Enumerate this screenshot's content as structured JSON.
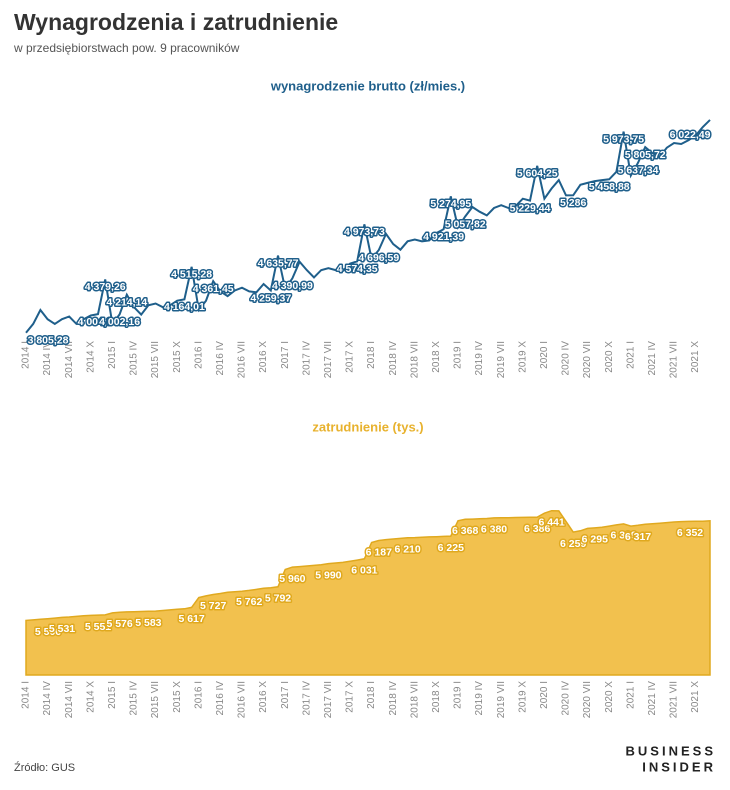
{
  "title": "Wynagrodzenia i zatrudnienie",
  "subtitle": "w przedsiębiorstwach pow. 9 pracowników",
  "source": "Źródło: GUS",
  "logo": [
    "BUSINESS",
    "INSIDER"
  ],
  "chart_data": [
    {
      "type": "line",
      "title": "wynagrodzenie brutto (zł/mies.)",
      "color": "#1f5f8b",
      "categories": [
        "2014 I",
        null,
        null,
        "2014 IV",
        null,
        null,
        "2014 VII",
        null,
        null,
        "2014 X",
        null,
        null,
        "2015 I",
        null,
        null,
        "2015 IV",
        null,
        null,
        "2015 VII",
        null,
        null,
        "2015 X",
        null,
        null,
        "2016 I",
        null,
        null,
        "2016 IV",
        null,
        null,
        "2016 VII",
        null,
        null,
        "2016 X",
        null,
        null,
        "2017 I",
        null,
        null,
        "2017 IV",
        null,
        null,
        "2017 VII",
        null,
        null,
        "2017 X",
        null,
        null,
        "2018 I",
        null,
        null,
        "2018 IV",
        null,
        null,
        "2018 VII",
        null,
        null,
        "2018 X",
        null,
        null,
        "2019 I",
        null,
        null,
        "2019 IV",
        null,
        null,
        "2019 VII",
        null,
        null,
        "2019 X",
        null,
        null,
        "2020 I",
        null,
        null,
        "2020 IV",
        null,
        null,
        "2020 VII",
        null,
        null,
        "2020 X",
        null,
        null,
        "2021 I",
        null,
        null,
        "2021 IV",
        null,
        null,
        "2021 VII",
        null,
        null,
        "2021 X",
        null,
        null
      ],
      "values": [
        3805.28,
        3900,
        4050,
        3950,
        3900,
        3950,
        3980,
        3900,
        3950,
        3990,
        4004.84,
        4379.26,
        3899.05,
        4002.16,
        4214.14,
        4080,
        4000,
        4100,
        4120,
        4080,
        4100,
        4150,
        4164.01,
        4515.28,
        4050,
        4150,
        4361.45,
        4250,
        4200,
        4260,
        4290,
        4250,
        4240,
        4330,
        4259.37,
        4635.77,
        4277,
        4390.99,
        4570,
        4480,
        4400,
        4480,
        4500,
        4480,
        4470,
        4550,
        4574.35,
        4973.73,
        4600,
        4696.59,
        4870,
        4760,
        4700,
        4790,
        4810,
        4790,
        4800,
        4880,
        4921.39,
        5274.95,
        4940,
        5057.82,
        5160,
        5110,
        5070,
        5150,
        5180,
        5150,
        5170,
        5250,
        5229.44,
        5604.25,
        5250,
        5360,
        5450,
        5285,
        5286,
        5400,
        5420,
        5440,
        5450,
        5458.88,
        5540,
        5973.75,
        5500,
        5637.34,
        5805.72,
        5740,
        5700,
        5800,
        5850,
        5840,
        5880,
        5930,
        6022.49,
        6100
      ],
      "value_labels": [
        "3 805,28",
        null,
        null,
        null,
        null,
        null,
        null,
        null,
        null,
        null,
        "4 004,84",
        "4 379,26",
        null,
        "4 002,16",
        "4 214,14",
        null,
        null,
        null,
        null,
        null,
        null,
        null,
        "4 164,01",
        "4 515,28",
        null,
        null,
        "4 361,45",
        null,
        null,
        null,
        null,
        null,
        null,
        null,
        "4 259,37",
        "4 635,77",
        null,
        "4 390,99",
        null,
        null,
        null,
        null,
        null,
        null,
        null,
        null,
        "4 574,35",
        "4 973,73",
        null,
        "4 696,59",
        null,
        null,
        null,
        null,
        null,
        null,
        null,
        null,
        "4 921,39",
        "5 274,95",
        null,
        "5 057,82",
        null,
        null,
        null,
        null,
        null,
        null,
        null,
        null,
        "5 229,44",
        "5 604,25",
        null,
        null,
        null,
        null,
        "5 286",
        null,
        null,
        null,
        null,
        "5 458,88",
        null,
        "5 973,75",
        null,
        "5 637,34",
        "5 805,72",
        null,
        null,
        null,
        null,
        null,
        null,
        null,
        "6 022,49",
        null
      ],
      "ylim": [
        3780,
        6120
      ]
    },
    {
      "type": "area",
      "title": "zatrudnienie (tys.)",
      "color": "#f2c14e",
      "line_color": "#e0a91f",
      "categories": [
        "2014 I",
        null,
        null,
        "2014 IV",
        null,
        null,
        "2014 VII",
        null,
        null,
        "2014 X",
        null,
        null,
        "2015 I",
        null,
        null,
        "2015 IV",
        null,
        null,
        "2015 VII",
        null,
        null,
        "2015 X",
        null,
        null,
        "2016 I",
        null,
        null,
        "2016 IV",
        null,
        null,
        "2016 VII",
        null,
        null,
        "2016 X",
        null,
        null,
        "2017 I",
        null,
        null,
        "2017 IV",
        null,
        null,
        "2017 VII",
        null,
        null,
        "2017 X",
        null,
        null,
        "2018 I",
        null,
        null,
        "2018 IV",
        null,
        null,
        "2018 VII",
        null,
        null,
        "2018 X",
        null,
        null,
        "2019 I",
        null,
        null,
        "2019 IV",
        null,
        null,
        "2019 VII",
        null,
        null,
        "2019 X",
        null,
        null,
        "2020 I",
        null,
        null,
        "2020 IV",
        null,
        null,
        "2020 VII",
        null,
        null,
        "2020 X",
        null,
        null,
        "2021 I",
        null,
        null,
        "2021 IV",
        null,
        null,
        "2021 VII",
        null,
        null,
        "2021 X",
        null,
        null
      ],
      "values": [
        5506,
        5510,
        5515,
        5520,
        5525,
        5531,
        5535,
        5540,
        5545,
        5548,
        5551,
        5553,
        5570,
        5576,
        5578,
        5580,
        5582,
        5583,
        5585,
        5590,
        5595,
        5600,
        5605,
        5617,
        5700,
        5715,
        5727,
        5735,
        5745,
        5750,
        5755,
        5762,
        5770,
        5780,
        5785,
        5792,
        5940,
        5960,
        5965,
        5970,
        5975,
        5980,
        5990,
        5995,
        6000,
        6010,
        6020,
        6031,
        6170,
        6187,
        6195,
        6200,
        6205,
        6210,
        6212,
        6215,
        6218,
        6220,
        6222,
        6225,
        6355,
        6368,
        6370,
        6372,
        6375,
        6380,
        6381,
        6382,
        6383,
        6384,
        6385,
        6386,
        6420,
        6441,
        6440,
        6350,
        6259,
        6270,
        6290,
        6295,
        6300,
        6310,
        6320,
        6329,
        6310,
        6317,
        6325,
        6330,
        6335,
        6340,
        6345,
        6348,
        6350,
        6352,
        6352,
        6355
      ],
      "value_labels": [
        "5 506",
        null,
        null,
        null,
        null,
        "5 531",
        null,
        null,
        null,
        null,
        "5 551",
        null,
        null,
        "5 576",
        null,
        null,
        null,
        "5 583",
        null,
        null,
        null,
        null,
        null,
        "5 617",
        null,
        null,
        "5 727",
        null,
        null,
        null,
        null,
        "5 762",
        null,
        null,
        null,
        "5 792",
        null,
        "5 960",
        null,
        null,
        null,
        null,
        "5 990",
        null,
        null,
        null,
        null,
        "6 031",
        null,
        "6 187",
        null,
        null,
        null,
        "6 210",
        null,
        null,
        null,
        null,
        null,
        "6 225",
        null,
        "6 368",
        null,
        null,
        null,
        "6 380",
        null,
        null,
        null,
        null,
        null,
        "6 386",
        null,
        "6 441",
        null,
        null,
        "6 259",
        null,
        null,
        "6 295",
        null,
        null,
        null,
        "6 329",
        null,
        "6 317",
        null,
        null,
        null,
        null,
        null,
        null,
        null,
        "6 352",
        null,
        null
      ],
      "ylim": [
        5040,
        6490
      ]
    }
  ]
}
